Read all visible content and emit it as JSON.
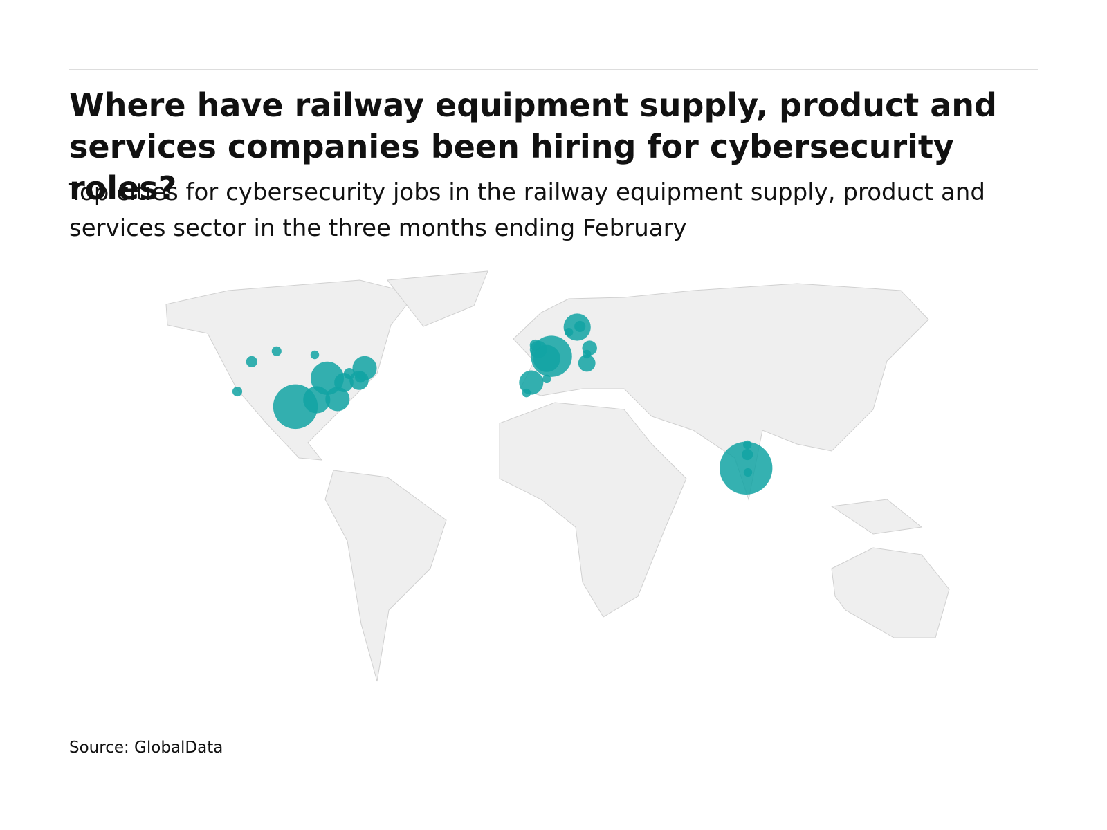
{
  "chart_data": {
    "type": "bubble-map",
    "title": "Where have railway equipment supply, product and services companies been hiring for cybersecurity roles?",
    "subtitle": "Top cities for cybersecurity jobs in the railway equipment supply, product and services sector in the three months ending February",
    "source": "Source: GlobalData",
    "color": "#12a3a3",
    "lon": [
      -108,
      -102.8,
      -93.8,
      -80,
      -87,
      -79.3,
      -75.5,
      -71.8,
      -69.5,
      -67.5,
      -64,
      -62,
      -63.5,
      5.5,
      3.8,
      -0.3,
      0.8,
      -1.8,
      -3.5,
      14.8,
      15.8,
      11.8,
      19.3,
      18.3,
      18.3,
      3.8,
      75.8,
      76.3,
      76.3,
      76.5
    ],
    "lat": [
      37.3,
      45.6,
      48.5,
      47.5,
      33.1,
      35,
      41,
      35.2,
      39.8,
      42.3,
      40.4,
      43.8,
      41.3,
      47.1,
      46.5,
      50.2,
      49,
      39.8,
      36.9,
      55.2,
      55.4,
      53.8,
      49.4,
      45.2,
      47.7,
      40.8,
      16,
      22.5,
      19.8,
      14.8
    ],
    "size": [
      1.3,
      1.7,
      1.3,
      1,
      27,
      10,
      15,
      8,
      5,
      1.7,
      5,
      8,
      1.7,
      23,
      10,
      1.7,
      4,
      8,
      1,
      10,
      1.7,
      1,
      3,
      4,
      1,
      1,
      38,
      1,
      1.7,
      1
    ]
  }
}
